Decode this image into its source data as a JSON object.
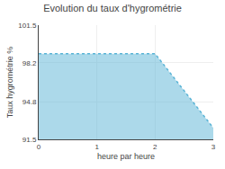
{
  "chart_data": {
    "type": "area",
    "title": "Evolution du taux d'hygrométrie",
    "xlabel": "heure par heure",
    "ylabel": "Taux hygrométrie %",
    "x": [
      0,
      2,
      3
    ],
    "values": [
      99.0,
      99.0,
      92.5
    ],
    "color": "#5ab4d6",
    "line_style": "dotted",
    "xlim": [
      0,
      3
    ],
    "ylim": [
      91.5,
      101.5
    ],
    "xticks": [
      0,
      1,
      2,
      3
    ],
    "yticks": [
      91.5,
      94.8,
      98.2,
      101.5
    ],
    "grid": true
  }
}
